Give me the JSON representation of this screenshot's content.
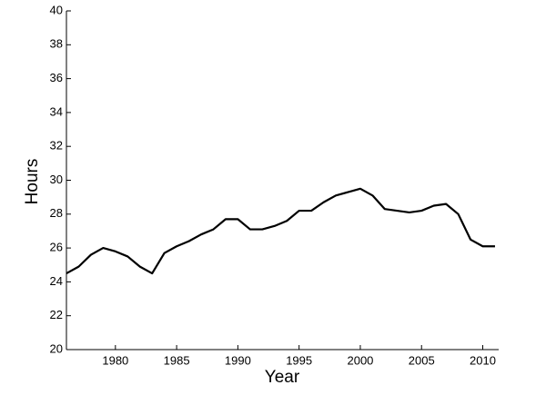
{
  "chart_data": {
    "type": "line",
    "xlabel": "Year",
    "ylabel": "Hours",
    "x": [
      1976,
      1977,
      1978,
      1979,
      1980,
      1981,
      1982,
      1983,
      1984,
      1985,
      1986,
      1987,
      1988,
      1989,
      1990,
      1991,
      1992,
      1993,
      1994,
      1995,
      1996,
      1997,
      1998,
      1999,
      2000,
      2001,
      2002,
      2003,
      2004,
      2005,
      2006,
      2007,
      2008,
      2009,
      2010,
      2011
    ],
    "series": [
      {
        "color": "#000000",
        "values": [
          24.5,
          24.9,
          25.6,
          26.0,
          25.8,
          25.5,
          24.9,
          24.5,
          25.7,
          26.1,
          26.4,
          26.8,
          27.1,
          27.7,
          27.7,
          27.1,
          27.1,
          27.3,
          27.6,
          28.2,
          28.2,
          28.7,
          29.1,
          29.3,
          29.5,
          29.1,
          28.3,
          28.2,
          28.1,
          28.2,
          28.5,
          28.6,
          28.0,
          26.5,
          26.1,
          26.1
        ]
      }
    ],
    "xlim": [
      1976,
      2011.3
    ],
    "ylim": [
      20,
      40
    ],
    "xticks": [
      1980,
      1985,
      1990,
      1995,
      2000,
      2005,
      2010
    ],
    "yticks": [
      20,
      22,
      24,
      26,
      28,
      30,
      32,
      34,
      36,
      38,
      40
    ]
  }
}
